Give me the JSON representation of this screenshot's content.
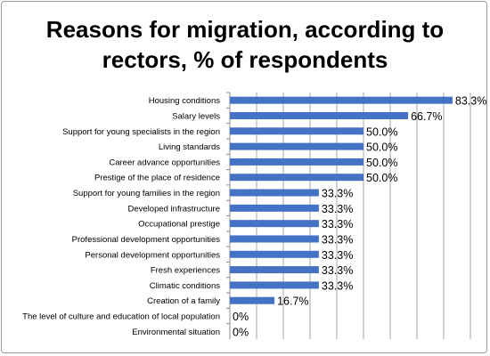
{
  "chart_data": {
    "type": "bar",
    "orientation": "horizontal",
    "title_lines": [
      "Reasons for migration, according to",
      "rectors, % of respondents"
    ],
    "xlim": [
      0,
      90
    ],
    "grid": true,
    "legend": "none",
    "bar_color": "#4472C4",
    "categories": [
      "Housing conditions",
      "Salary levels",
      "Support for young specialists in the region",
      "Living standards",
      "Career advance opportunities",
      "Prestige of the place of residence",
      "Support for young families in the region",
      "Developed infrastructure",
      "Occupational prestige",
      "Professional development opportunities",
      "Personal development opportunities",
      "Fresh experiences",
      "Climatic conditions",
      "Creation of a family",
      "The level of culture and education of local population",
      "Environmental situation"
    ],
    "values": [
      83.3,
      66.7,
      50.0,
      50.0,
      50.0,
      50.0,
      33.3,
      33.3,
      33.3,
      33.3,
      33.3,
      33.3,
      33.3,
      16.7,
      0,
      0
    ],
    "value_labels": [
      "83.3%",
      "66.7%",
      "50.0%",
      "50.0%",
      "50.0%",
      "50.0%",
      "33.3%",
      "33.3%",
      "33.3%",
      "33.3%",
      "33.3%",
      "33.3%",
      "33.3%",
      "16.7%",
      "0%",
      "0%"
    ]
  }
}
